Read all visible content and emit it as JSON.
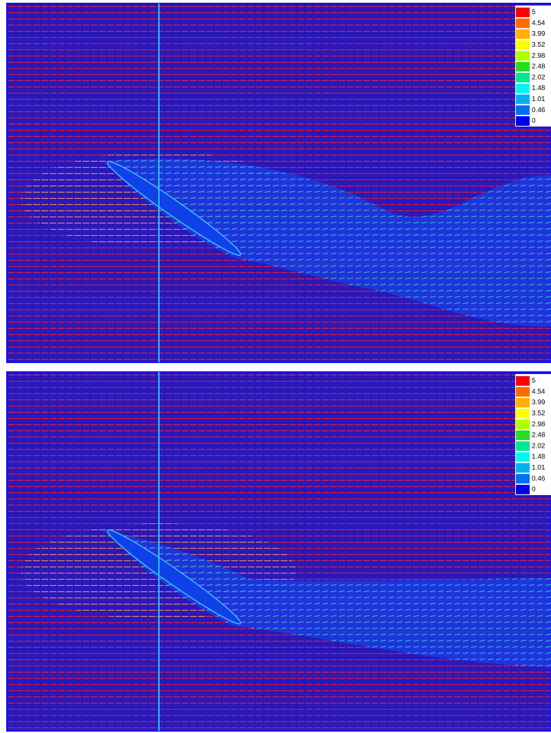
{
  "panels": [
    {
      "legend": [
        {
          "label": 5,
          "color": "#ff0000"
        },
        {
          "label": 4.54,
          "color": "#ff6a00"
        },
        {
          "label": 3.99,
          "color": "#ffb000"
        },
        {
          "label": 3.52,
          "color": "#ffff00"
        },
        {
          "label": 2.98,
          "color": "#b0ff00"
        },
        {
          "label": 2.48,
          "color": "#20e020"
        },
        {
          "label": 2.02,
          "color": "#00e890"
        },
        {
          "label": 1.48,
          "color": "#00f8f0"
        },
        {
          "label": 1.01,
          "color": "#00b0f0"
        },
        {
          "label": 0.46,
          "color": "#0070f0"
        },
        {
          "label": 0,
          "color": "#0000f0"
        }
      ]
    },
    {
      "legend": [
        {
          "label": 5,
          "color": "#ff0000"
        },
        {
          "label": 4.54,
          "color": "#ff6a00"
        },
        {
          "label": 3.99,
          "color": "#ffb000"
        },
        {
          "label": 3.52,
          "color": "#ffff00"
        },
        {
          "label": 2.98,
          "color": "#b0ff00"
        },
        {
          "label": 2.48,
          "color": "#20e020"
        },
        {
          "label": 2.02,
          "color": "#00e890"
        },
        {
          "label": 1.48,
          "color": "#00f8f0"
        },
        {
          "label": 1.01,
          "color": "#00b0f0"
        },
        {
          "label": 0.46,
          "color": "#0070f0"
        },
        {
          "label": 0,
          "color": "#0000f0"
        }
      ]
    }
  ]
}
